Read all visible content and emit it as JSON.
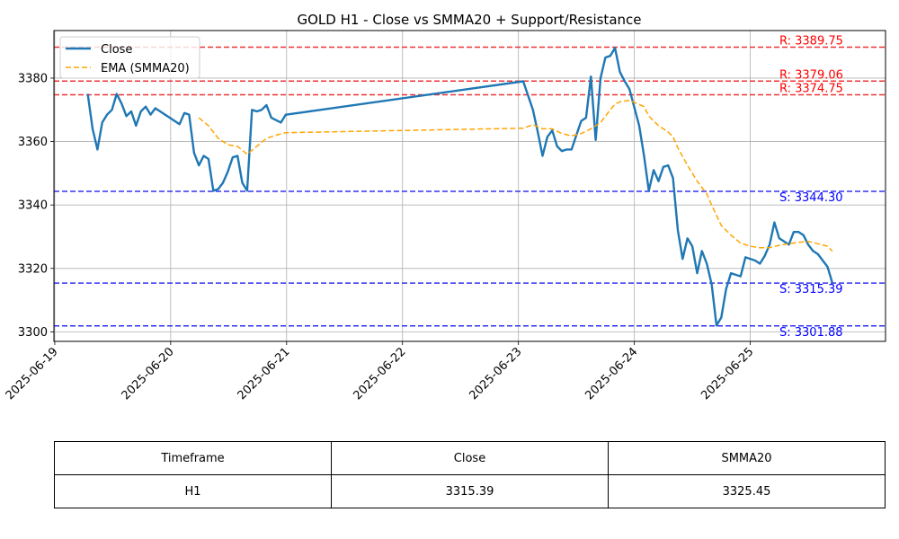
{
  "chart_data": {
    "type": "line",
    "title": "GOLD H1 - Close vs SMMA20 + Support/Resistance",
    "xlabel": "",
    "ylabel": "",
    "x_ticks": [
      "2025-06-19",
      "2025-06-20",
      "2025-06-21",
      "2025-06-22",
      "2025-06-23",
      "2025-06-24",
      "2025-06-25"
    ],
    "y_ticks": [
      3300,
      3320,
      3340,
      3360,
      3380
    ],
    "xlim": [
      "2025-06-18T23:50",
      "2025-06-26T04:00"
    ],
    "ylim": [
      3297,
      3395
    ],
    "grid": true,
    "legend_position": "upper-left",
    "series": [
      {
        "name": "Close",
        "color": "#1f77b4",
        "style": "solid",
        "points": [
          [
            "2025-06-19T06:50",
            3375.0
          ],
          [
            "2025-06-19T07:50",
            3364.0
          ],
          [
            "2025-06-19T08:50",
            3357.5
          ],
          [
            "2025-06-19T09:50",
            3366.0
          ],
          [
            "2025-06-19T10:50",
            3368.5
          ],
          [
            "2025-06-19T11:50",
            3370.0
          ],
          [
            "2025-06-19T12:50",
            3375.0
          ],
          [
            "2025-06-19T13:50",
            3372.0
          ],
          [
            "2025-06-19T14:50",
            3368.0
          ],
          [
            "2025-06-19T15:50",
            3369.5
          ],
          [
            "2025-06-19T16:50",
            3365.0
          ],
          [
            "2025-06-19T17:50",
            3369.5
          ],
          [
            "2025-06-19T18:50",
            3371.0
          ],
          [
            "2025-06-19T19:50",
            3368.5
          ],
          [
            "2025-06-19T20:50",
            3370.5
          ],
          [
            "2025-06-20T01:50",
            3365.5
          ],
          [
            "2025-06-20T02:50",
            3369.0
          ],
          [
            "2025-06-20T03:50",
            3368.5
          ],
          [
            "2025-06-20T04:50",
            3356.5
          ],
          [
            "2025-06-20T05:50",
            3352.5
          ],
          [
            "2025-06-20T06:50",
            3355.5
          ],
          [
            "2025-06-20T07:50",
            3354.5
          ],
          [
            "2025-06-20T08:50",
            3344.5
          ],
          [
            "2025-06-20T09:50",
            3345.0
          ],
          [
            "2025-06-20T10:50",
            3347.0
          ],
          [
            "2025-06-20T11:50",
            3350.5
          ],
          [
            "2025-06-20T12:50",
            3355.0
          ],
          [
            "2025-06-20T13:50",
            3355.5
          ],
          [
            "2025-06-20T14:50",
            3347.0
          ],
          [
            "2025-06-20T15:50",
            3344.5
          ],
          [
            "2025-06-20T16:50",
            3370.0
          ],
          [
            "2025-06-20T17:50",
            3369.5
          ],
          [
            "2025-06-20T18:50",
            3370.0
          ],
          [
            "2025-06-20T19:50",
            3371.5
          ],
          [
            "2025-06-20T20:50",
            3367.5
          ],
          [
            "2025-06-20T22:50",
            3366.0
          ],
          [
            "2025-06-20T23:50",
            3368.5
          ],
          [
            "2025-06-21T00:00",
            3368.5
          ],
          [
            "2025-06-23T01:00",
            3379.0
          ],
          [
            "2025-06-23T03:00",
            3370.0
          ],
          [
            "2025-06-23T04:00",
            3363.0
          ],
          [
            "2025-06-23T05:00",
            3355.5
          ],
          [
            "2025-06-23T06:00",
            3361.5
          ],
          [
            "2025-06-23T07:00",
            3363.5
          ],
          [
            "2025-06-23T08:00",
            3358.5
          ],
          [
            "2025-06-23T09:00",
            3357.0
          ],
          [
            "2025-06-23T10:00",
            3357.5
          ],
          [
            "2025-06-23T11:00",
            3357.5
          ],
          [
            "2025-06-23T12:00",
            3362.0
          ],
          [
            "2025-06-23T13:00",
            3366.5
          ],
          [
            "2025-06-23T14:00",
            3367.5
          ],
          [
            "2025-06-23T15:00",
            3380.5
          ],
          [
            "2025-06-23T16:00",
            3360.5
          ],
          [
            "2025-06-23T17:00",
            3380.0
          ],
          [
            "2025-06-23T18:00",
            3386.5
          ],
          [
            "2025-06-23T19:00",
            3387.0
          ],
          [
            "2025-06-23T20:00",
            3389.5
          ],
          [
            "2025-06-23T21:00",
            3382.0
          ],
          [
            "2025-06-23T22:00",
            3379.0
          ],
          [
            "2025-06-23T23:00",
            3376.5
          ],
          [
            "2025-06-24T01:00",
            3365.0
          ],
          [
            "2025-06-24T02:00",
            3355.5
          ],
          [
            "2025-06-24T03:00",
            3344.5
          ],
          [
            "2025-06-24T04:00",
            3351.0
          ],
          [
            "2025-06-24T05:00",
            3347.5
          ],
          [
            "2025-06-24T06:00",
            3352.0
          ],
          [
            "2025-06-24T07:00",
            3352.5
          ],
          [
            "2025-06-24T08:00",
            3348.5
          ],
          [
            "2025-06-24T09:00",
            3332.0
          ],
          [
            "2025-06-24T10:00",
            3323.0
          ],
          [
            "2025-06-24T11:00",
            3329.5
          ],
          [
            "2025-06-24T12:00",
            3327.0
          ],
          [
            "2025-06-24T13:00",
            3318.5
          ],
          [
            "2025-06-24T14:00",
            3325.5
          ],
          [
            "2025-06-24T15:00",
            3321.5
          ],
          [
            "2025-06-24T16:00",
            3315.0
          ],
          [
            "2025-06-24T17:00",
            3302.0
          ],
          [
            "2025-06-24T18:00",
            3304.5
          ],
          [
            "2025-06-24T19:00",
            3313.5
          ],
          [
            "2025-06-24T20:00",
            3318.5
          ],
          [
            "2025-06-24T21:00",
            3318.0
          ],
          [
            "2025-06-24T22:00",
            3317.5
          ],
          [
            "2025-06-24T23:00",
            3323.5
          ],
          [
            "2025-06-25T01:00",
            3322.5
          ],
          [
            "2025-06-25T02:00",
            3321.5
          ],
          [
            "2025-06-25T03:00",
            3324.0
          ],
          [
            "2025-06-25T04:00",
            3327.5
          ],
          [
            "2025-06-25T05:00",
            3334.5
          ],
          [
            "2025-06-25T06:00",
            3329.5
          ],
          [
            "2025-06-25T07:00",
            3328.5
          ],
          [
            "2025-06-25T08:00",
            3327.5
          ],
          [
            "2025-06-25T09:00",
            3331.5
          ],
          [
            "2025-06-25T10:00",
            3331.5
          ],
          [
            "2025-06-25T11:00",
            3330.5
          ],
          [
            "2025-06-25T12:00",
            3327.5
          ],
          [
            "2025-06-25T13:00",
            3325.5
          ],
          [
            "2025-06-25T14:00",
            3324.5
          ],
          [
            "2025-06-25T15:00",
            3322.5
          ],
          [
            "2025-06-25T16:00",
            3320.5
          ],
          [
            "2025-06-25T17:00",
            3315.39
          ]
        ]
      },
      {
        "name": "EMA (SMMA20)",
        "color": "#ffa500",
        "style": "dashed",
        "points": [
          [
            "2025-06-20T05:50",
            3367.5
          ],
          [
            "2025-06-20T07:50",
            3365.0
          ],
          [
            "2025-06-20T09:50",
            3361.0
          ],
          [
            "2025-06-20T11:50",
            3359.0
          ],
          [
            "2025-06-20T13:50",
            3358.5
          ],
          [
            "2025-06-20T15:50",
            3356.0
          ],
          [
            "2025-06-20T17:50",
            3358.5
          ],
          [
            "2025-06-20T19:50",
            3361.0
          ],
          [
            "2025-06-20T21:50",
            3362.0
          ],
          [
            "2025-06-20T23:50",
            3362.8
          ],
          [
            "2025-06-21T00:00",
            3362.8
          ],
          [
            "2025-06-23T01:00",
            3364.2
          ],
          [
            "2025-06-23T03:00",
            3365.3
          ],
          [
            "2025-06-23T05:00",
            3364.0
          ],
          [
            "2025-06-23T07:00",
            3364.0
          ],
          [
            "2025-06-23T09:00",
            3362.5
          ],
          [
            "2025-06-23T11:00",
            3361.8
          ],
          [
            "2025-06-23T13:00",
            3362.5
          ],
          [
            "2025-06-23T15:00",
            3364.0
          ],
          [
            "2025-06-23T17:00",
            3366.0
          ],
          [
            "2025-06-23T19:00",
            3370.0
          ],
          [
            "2025-06-23T20:00",
            3371.8
          ],
          [
            "2025-06-23T21:00",
            3372.5
          ],
          [
            "2025-06-23T23:00",
            3373.0
          ],
          [
            "2025-06-24T02:00",
            3371.0
          ],
          [
            "2025-06-24T03:00",
            3368.0
          ],
          [
            "2025-06-24T05:00",
            3365.0
          ],
          [
            "2025-06-24T07:00",
            3363.0
          ],
          [
            "2025-06-24T08:00",
            3361.5
          ],
          [
            "2025-06-24T09:00",
            3358.0
          ],
          [
            "2025-06-24T11:00",
            3352.5
          ],
          [
            "2025-06-24T13:00",
            3347.5
          ],
          [
            "2025-06-24T15:00",
            3343.5
          ],
          [
            "2025-06-24T16:00",
            3340.0
          ],
          [
            "2025-06-24T18:00",
            3333.5
          ],
          [
            "2025-06-24T20:00",
            3330.5
          ],
          [
            "2025-06-24T22:00",
            3328.0
          ],
          [
            "2025-06-25T00:00",
            3327.0
          ],
          [
            "2025-06-25T02:00",
            3326.5
          ],
          [
            "2025-06-25T04:00",
            3326.5
          ],
          [
            "2025-06-25T06:00",
            3327.3
          ],
          [
            "2025-06-25T08:00",
            3327.8
          ],
          [
            "2025-06-25T10:00",
            3328.2
          ],
          [
            "2025-06-25T12:00",
            3328.5
          ],
          [
            "2025-06-25T14:00",
            3327.8
          ],
          [
            "2025-06-25T16:00",
            3327.0
          ],
          [
            "2025-06-25T17:00",
            3325.45
          ]
        ]
      }
    ],
    "levels": [
      {
        "kind": "resistance",
        "value": 3389.75,
        "label": "R: 3389.75",
        "color": "#ff0000",
        "line_color": "#ee3333"
      },
      {
        "kind": "resistance",
        "value": 3379.06,
        "label": "R: 3379.06",
        "color": "#ff0000",
        "line_color": "#ee3333"
      },
      {
        "kind": "resistance",
        "value": 3374.75,
        "label": "R: 3374.75",
        "color": "#ff0000",
        "line_color": "#ee3333"
      },
      {
        "kind": "support",
        "value": 3344.3,
        "label": "S: 3344.30",
        "color": "#0000ff",
        "line_color": "#3333ee"
      },
      {
        "kind": "support",
        "value": 3315.39,
        "label": "S: 3315.39",
        "color": "#0000ff",
        "line_color": "#3333ee"
      },
      {
        "kind": "support",
        "value": 3301.88,
        "label": "S: 3301.88",
        "color": "#0000ff",
        "line_color": "#3333ee"
      }
    ]
  },
  "table": {
    "headers": [
      "Timeframe",
      "Close",
      "SMMA20"
    ],
    "rows": [
      [
        "H1",
        "3315.39",
        "3325.45"
      ]
    ]
  }
}
